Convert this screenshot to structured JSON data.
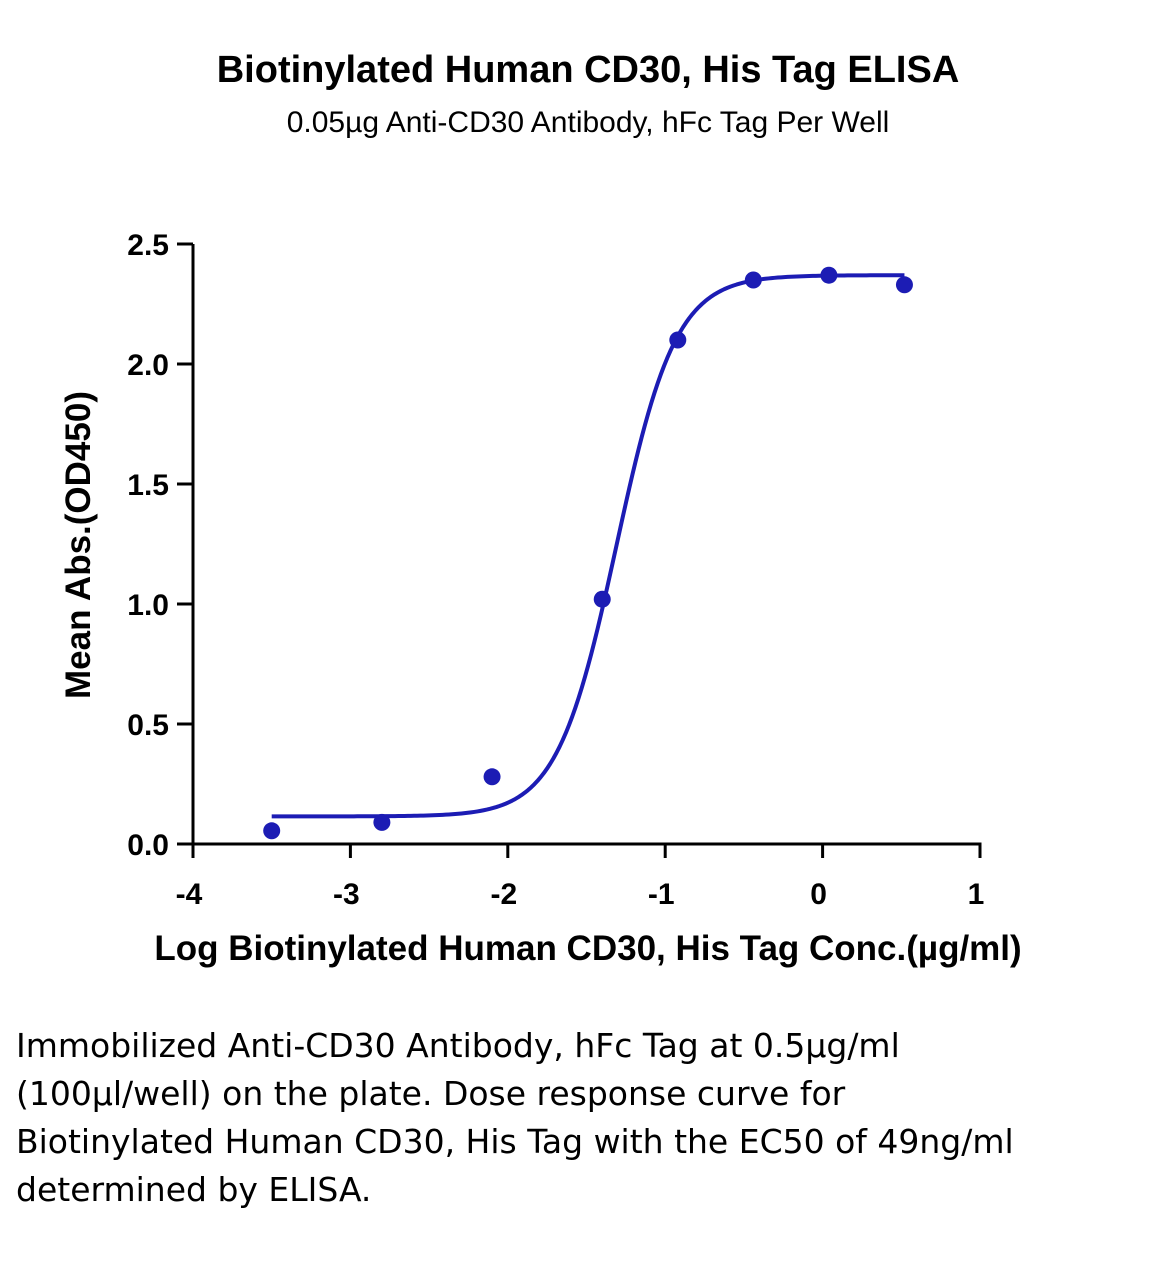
{
  "chart_data": {
    "type": "scatter",
    "title": "Biotinylated Human CD30, His Tag ELISA",
    "subtitle": "0.05µg Anti-CD30 Antibody, hFc Tag Per Well",
    "xlabel": "Log Biotinylated Human CD30, His Tag Conc.(µg/ml)",
    "ylabel": "Mean Abs.(OD450)",
    "xlim": [
      -4,
      1
    ],
    "ylim": [
      0,
      2.5
    ],
    "x_ticks": [
      "-4",
      "-3",
      "-2",
      "-1",
      "0",
      "1"
    ],
    "y_ticks": [
      "0.0",
      "0.5",
      "1.0",
      "1.5",
      "2.0",
      "2.5"
    ],
    "grid": false,
    "series": [
      {
        "points": [
          {
            "x": -3.5,
            "y": 0.055
          },
          {
            "x": -2.8,
            "y": 0.09
          },
          {
            "x": -2.1,
            "y": 0.28
          },
          {
            "x": -1.4,
            "y": 1.02
          },
          {
            "x": -0.92,
            "y": 2.1
          },
          {
            "x": -0.44,
            "y": 2.35
          },
          {
            "x": 0.04,
            "y": 2.37
          },
          {
            "x": 0.52,
            "y": 2.33
          }
        ],
        "color": "#1c1cb4"
      }
    ],
    "fit_curve": {
      "type": "4PL",
      "bottom": 0.115,
      "top": 2.37,
      "log_ec50": -1.31,
      "hill_slope": 2.3,
      "x_range": [
        -3.5,
        0.52
      ],
      "color": "#1c1cb4"
    }
  },
  "caption": "Immobilized Anti-CD30 Antibody, hFc Tag at 0.5µg/ml (100µl/well) on the plate. Dose response curve for Biotinylated Human CD30, His Tag with the EC50 of 49ng/ml determined by ELISA."
}
